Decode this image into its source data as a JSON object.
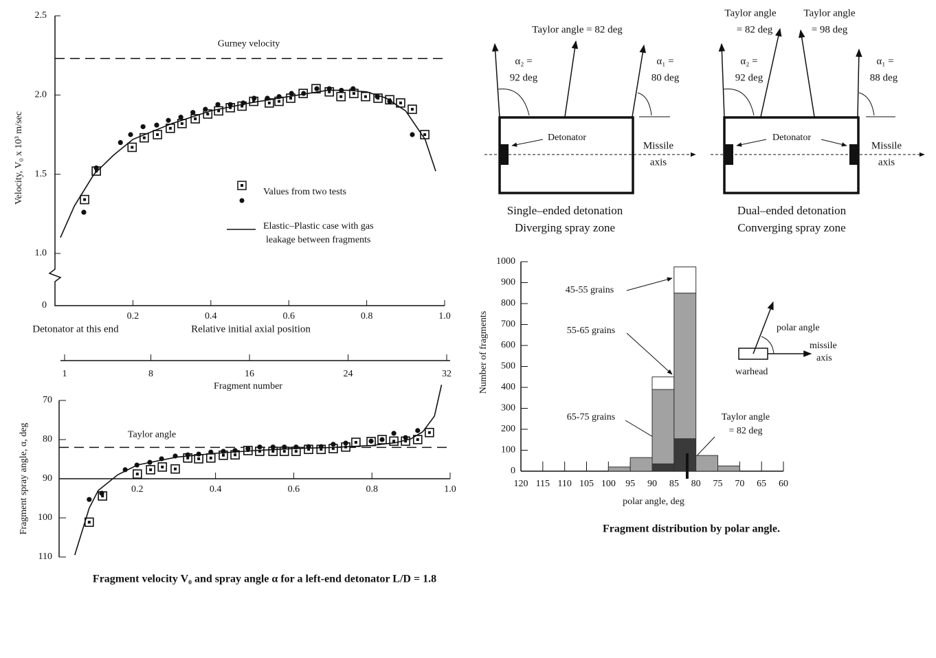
{
  "chart_data": [
    {
      "type": "scatter",
      "xlabel": "Relative initial axial position",
      "ylabel": "Velocity, V₀ x 10³ m/sec",
      "annotation": "Detonator at this end",
      "xlim": [
        0,
        1
      ],
      "xticks": [
        0.2,
        0.4,
        0.6,
        0.8,
        {
          "value": 1,
          "label": "1.0"
        }
      ],
      "ylim": [
        1,
        2.5
      ],
      "axis_break": true,
      "yticks": [
        0,
        {
          "value": 1,
          "label": "1.0"
        },
        1.5,
        {
          "value": 2,
          "label": "2.0"
        },
        2.5
      ],
      "reference_line": {
        "value": 2.23,
        "label": "Gurney velocity"
      },
      "series": [
        {
          "name": "Values from two tests",
          "marker": "square",
          "color": "#111111",
          "x": [
            0.076,
            0.106,
            0.198,
            0.229,
            0.263,
            0.296,
            0.326,
            0.36,
            0.392,
            0.42,
            0.45,
            0.48,
            0.51,
            0.55,
            0.575,
            0.605,
            0.637,
            0.67,
            0.704,
            0.734,
            0.767,
            0.797,
            0.829,
            0.859,
            0.887,
            0.917,
            0.949
          ],
          "values": [
            1.34,
            1.52,
            1.67,
            1.73,
            1.75,
            1.79,
            1.82,
            1.85,
            1.88,
            1.9,
            1.92,
            1.93,
            1.96,
            1.95,
            1.96,
            1.98,
            2.01,
            2.04,
            2.02,
            1.99,
            2.01,
            1.99,
            1.98,
            1.97,
            1.95,
            1.91,
            1.75
          ]
        },
        {
          "marker": "dot",
          "color": "#111111",
          "x": [
            0.074,
            0.106,
            0.168,
            0.194,
            0.226,
            0.261,
            0.291,
            0.323,
            0.354,
            0.386,
            0.418,
            0.45,
            0.483,
            0.511,
            0.545,
            0.575,
            0.607,
            0.638,
            0.672,
            0.704,
            0.735,
            0.765,
            0.827,
            0.859,
            0.917
          ],
          "values": [
            1.26,
            1.54,
            1.7,
            1.75,
            1.8,
            1.81,
            1.84,
            1.86,
            1.89,
            1.91,
            1.94,
            1.94,
            1.95,
            1.98,
            1.98,
            1.99,
            2.01,
            2.01,
            2.04,
            2.04,
            2.03,
            2.04,
            1.99,
            1.96,
            1.75
          ]
        },
        {
          "name": [
            "Elastic–Plastic case with gas",
            "leakage between fragments"
          ],
          "marker": "line",
          "color": "#111111",
          "x": [
            0.014,
            0.05,
            0.1,
            0.15,
            0.2,
            0.3,
            0.4,
            0.5,
            0.6,
            0.7,
            0.75,
            0.8,
            0.85,
            0.9,
            0.95,
            0.977
          ],
          "values": [
            1.1,
            1.3,
            1.5,
            1.62,
            1.72,
            1.82,
            1.9,
            1.95,
            1.99,
            2.03,
            2.03,
            2.02,
            1.98,
            1.9,
            1.72,
            1.52
          ]
        }
      ]
    },
    {
      "type": "scatter",
      "ylabel": "Fragment spray angle, α, deg",
      "caption": "Fragment velocity V₀ and spray angle α for a left-end detonator L/D = 1.8",
      "xlim": [
        0,
        1
      ],
      "xticks": [
        0.2,
        0.4,
        0.6,
        0.8,
        {
          "value": 1,
          "label": "1.0"
        }
      ],
      "ylim": [
        70,
        110
      ],
      "y_inverted": true,
      "yticks": [
        70,
        80,
        90,
        100,
        110
      ],
      "xaxis_crossing": 90,
      "x2lim": [
        1,
        32
      ],
      "x2ticks": [
        1,
        8,
        16,
        24,
        32
      ],
      "x2label": "Fragment number",
      "reference_line": {
        "value": 82,
        "label": "Taylor angle"
      },
      "series": [
        {
          "marker": "square",
          "color": "#111111",
          "x": [
            0.077,
            0.111,
            0.2,
            0.234,
            0.264,
            0.297,
            0.329,
            0.357,
            0.388,
            0.42,
            0.45,
            0.483,
            0.513,
            0.547,
            0.576,
            0.606,
            0.638,
            0.67,
            0.701,
            0.733,
            0.759,
            0.798,
            0.826,
            0.856,
            0.886,
            0.917,
            0.947
          ],
          "values": [
            101.1,
            94.4,
            88.8,
            87.7,
            87.0,
            87.5,
            84.7,
            84.9,
            84.7,
            84.0,
            83.9,
            82.8,
            83.0,
            83.0,
            83.0,
            83.0,
            82.5,
            82.5,
            82.3,
            81.9,
            80.7,
            80.5,
            80.0,
            80.4,
            80.4,
            80.0,
            78.2
          ]
        },
        {
          "marker": "dot",
          "color": "#111111",
          "x": [
            0.077,
            0.109,
            0.169,
            0.199,
            0.232,
            0.262,
            0.297,
            0.329,
            0.357,
            0.388,
            0.42,
            0.45,
            0.483,
            0.513,
            0.547,
            0.576,
            0.606,
            0.638,
            0.67,
            0.701,
            0.733,
            0.798,
            0.826,
            0.856,
            0.886,
            0.917
          ],
          "values": [
            95.3,
            93.7,
            87.7,
            86.5,
            85.8,
            84.9,
            84.2,
            83.9,
            83.7,
            83.2,
            83.0,
            82.8,
            82.3,
            81.9,
            81.9,
            81.9,
            81.9,
            81.8,
            81.8,
            81.2,
            80.9,
            80.4,
            80.0,
            78.4,
            79.5,
            77.7
          ]
        },
        {
          "marker": "line",
          "color": "#111111",
          "x": [
            0.04,
            0.077,
            0.1,
            0.15,
            0.2,
            0.3,
            0.4,
            0.5,
            0.6,
            0.7,
            0.8,
            0.86,
            0.9,
            0.93,
            0.96,
            0.978
          ],
          "values": [
            109.5,
            97.5,
            93,
            89,
            86.5,
            84.5,
            83.5,
            82.8,
            82.3,
            82.0,
            81.5,
            80.8,
            79.8,
            78,
            74,
            66
          ]
        }
      ]
    },
    {
      "type": "histogram",
      "xlabel": "polar angle, deg",
      "ylabel": "Number of fragments",
      "caption": "Fragment distribution by polar angle.",
      "xlim": [
        120,
        60
      ],
      "xticks": [
        120,
        115,
        110,
        105,
        100,
        95,
        90,
        85,
        80,
        75,
        70,
        65,
        60
      ],
      "ylim": [
        0,
        1000
      ],
      "yticks": [
        0,
        100,
        200,
        300,
        400,
        500,
        600,
        700,
        800,
        900,
        1000
      ],
      "bins": [
        100,
        95,
        90,
        85,
        80,
        75,
        70
      ],
      "series": [
        {
          "name": "65-75 grains",
          "color": "#3a3a3a",
          "values": [
            0,
            0,
            35,
            155,
            0,
            0
          ]
        },
        {
          "name": "55-65 grains",
          "color": "#a2a2a2",
          "values": [
            20,
            65,
            355,
            695,
            75,
            25
          ]
        },
        {
          "name": "45-55 grains",
          "color": "#ffffff",
          "values": [
            0,
            0,
            60,
            125,
            0,
            0
          ]
        }
      ],
      "marker": {
        "value": 82,
        "label": [
          "Taylor angle",
          "= 82 deg"
        ]
      },
      "inset": {
        "angle_label": "polar angle",
        "axis_label": [
          "missile",
          "axis"
        ],
        "body_label": "warhead"
      }
    }
  ],
  "diagrams": [
    {
      "taylor": "Taylor angle = 82 deg",
      "alpha2": [
        "α₂ =",
        "92 deg"
      ],
      "alpha1": [
        "α₁ =",
        "80 deg"
      ],
      "detonator": "Detonator",
      "axis": [
        "Missile",
        "axis"
      ],
      "caption": [
        "Single–ended detonation",
        "Diverging spray zone"
      ]
    },
    {
      "taylor1": [
        "Taylor angle",
        "= 82 deg"
      ],
      "taylor2": [
        "Taylor angle",
        "= 98 deg"
      ],
      "alpha2": [
        "α₂ =",
        "92 deg"
      ],
      "alpha1": [
        "α₁ =",
        "88 deg"
      ],
      "detonator": "Detonator",
      "axis": [
        "Missile",
        "axis"
      ],
      "caption": [
        "Dual–ended detonation",
        "Converging spray zone"
      ]
    }
  ]
}
